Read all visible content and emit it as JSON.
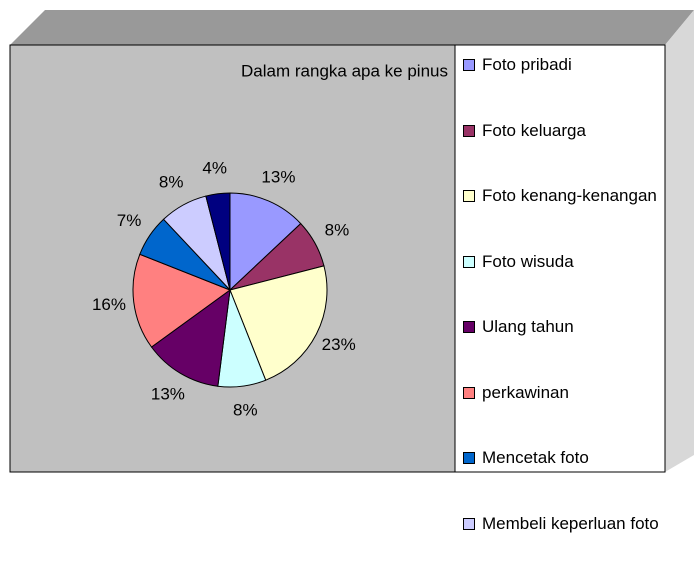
{
  "chart_data": {
    "type": "pie",
    "title": "Dalam rangka apa ke pinus",
    "categories": [
      "Foto pribadi",
      "Foto keluarga",
      "Foto kenang-kenangan",
      "Foto wisuda",
      "Ulang tahun",
      "perkawinan",
      "Mencetak foto",
      "Membeli keperluan foto",
      null
    ],
    "values": [
      13,
      8,
      23,
      8,
      13,
      16,
      7,
      8,
      4
    ],
    "value_labels": [
      "13%",
      "8%",
      "23%",
      "8%",
      "13%",
      "16%",
      "7%",
      "8%",
      "4%"
    ],
    "colors": [
      "#9999ff",
      "#993366",
      "#ffffcc",
      "#ccffff",
      "#660066",
      "#ff8080",
      "#0066cc",
      "#ccccff",
      "#000080"
    ]
  }
}
